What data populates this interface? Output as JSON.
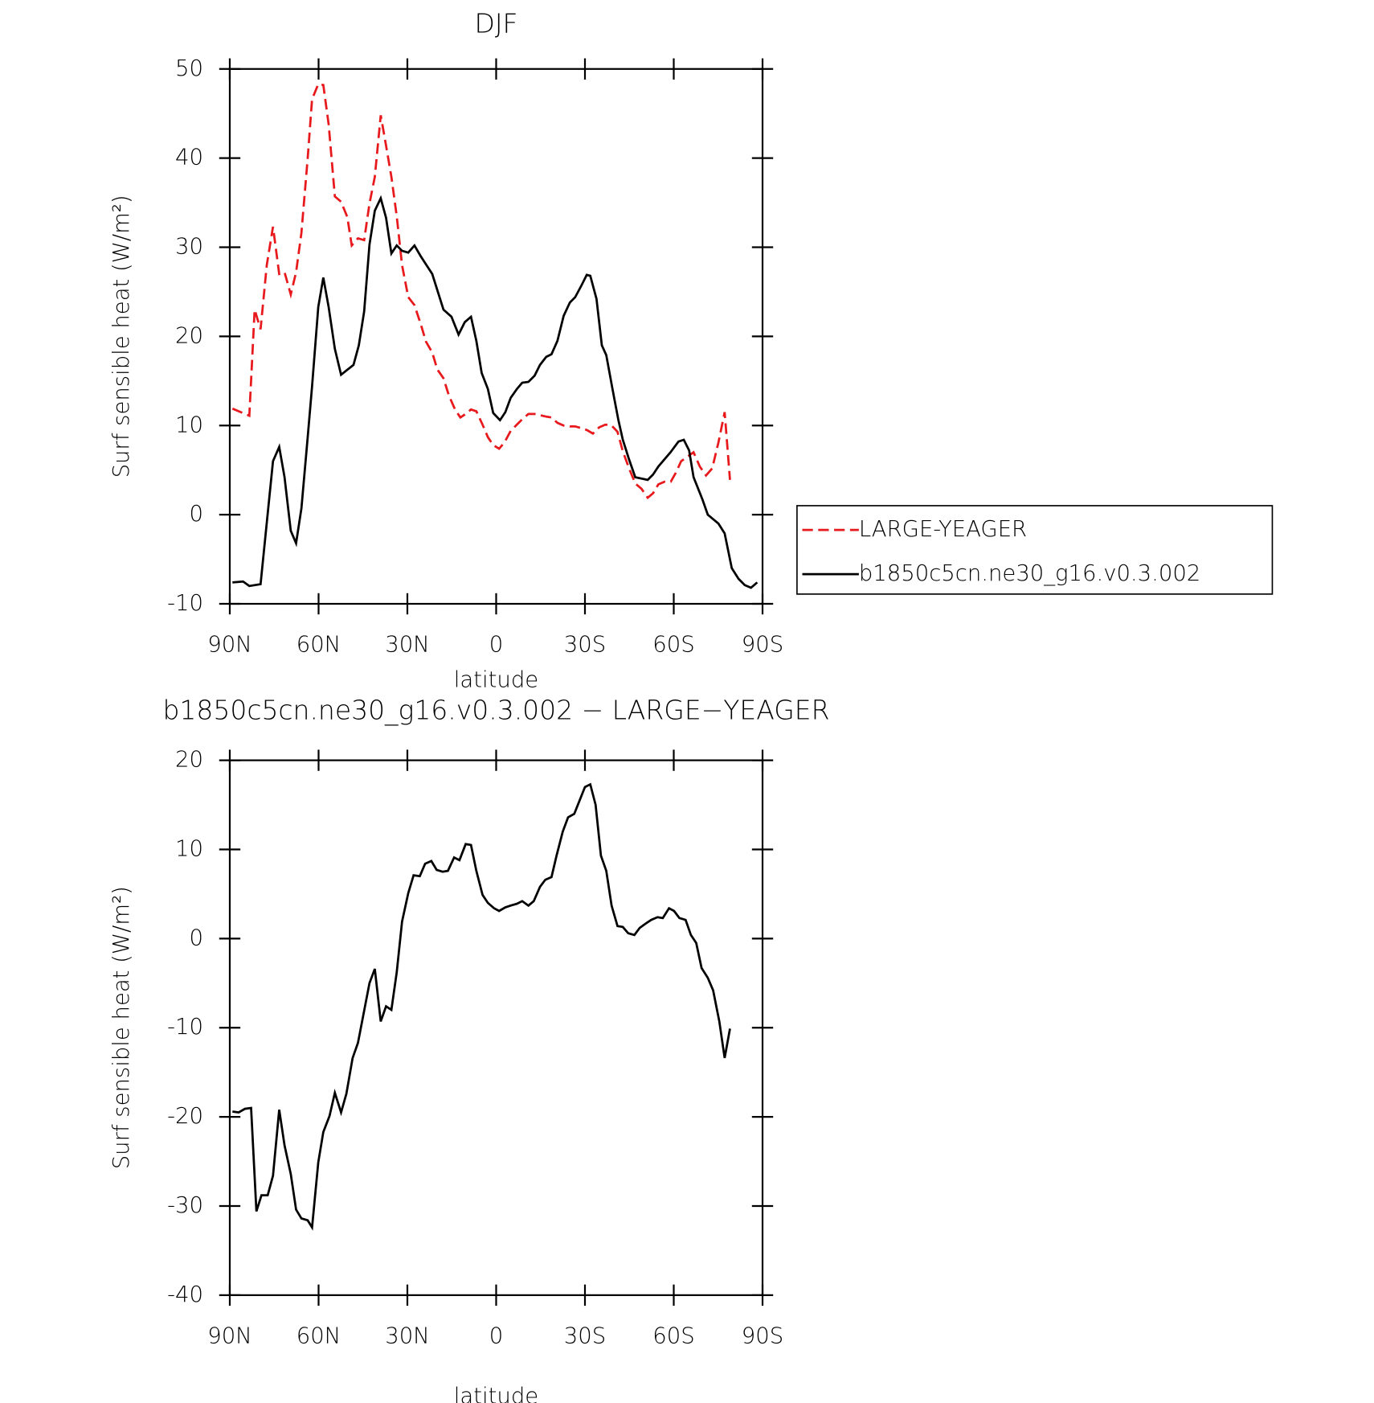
{
  "chart_data": [
    {
      "type": "line",
      "title": "DJF",
      "xlabel": "latitude",
      "ylabel": "Surf sensible heat (W/m²)",
      "xlim": [
        90,
        -90
      ],
      "xticks": [
        {
          "value": 90,
          "label": "90N"
        },
        {
          "value": 60,
          "label": "60N"
        },
        {
          "value": 30,
          "label": "30N"
        },
        0,
        {
          "value": -30,
          "label": "30S"
        },
        {
          "value": -60,
          "label": "60S"
        },
        {
          "value": -90,
          "label": "90S"
        }
      ],
      "ylim": [
        -10,
        50
      ],
      "yticks": [
        -10,
        0,
        10,
        20,
        30,
        40,
        50
      ],
      "legend": "outside-right",
      "series": [
        {
          "name": "LARGE-YEAGER",
          "color": "#e8191c",
          "dash": "dashed",
          "x": [
            89.1,
            87.0,
            83.4,
            81.6,
            79.6,
            77.5,
            75.4,
            73.3,
            71.5,
            69.4,
            67.6,
            65.8,
            63.7,
            62.2,
            60.1,
            58.4,
            56.6,
            54.5,
            52.4,
            50.3,
            48.8,
            46.7,
            44.6,
            42.8,
            41.0,
            39.0,
            37.2,
            35.4,
            33.6,
            31.8,
            29.7,
            27.6,
            25.5,
            23.7,
            21.6,
            19.9,
            17.8,
            16.0,
            13.9,
            12.1,
            10.3,
            8.5,
            6.7,
            4.6,
            2.8,
            1.0,
            -1.0,
            -2.8,
            -4.9,
            -7.0,
            -8.8,
            -10.9,
            -13.0,
            -16.9,
            -18.7,
            -20.7,
            -22.8,
            -24.9,
            -26.7,
            -28.8,
            -30.6,
            -32.7,
            -34.8,
            -36.9,
            -39.0,
            -41.0,
            -42.8,
            -44.9,
            -47.0,
            -49.1,
            -51.2,
            -53.0,
            -54.8,
            -56.9,
            -59.0,
            -60.7,
            -62.5,
            -64.6,
            -66.7,
            -68.8,
            -70.9,
            -73.0,
            -75.1,
            -77.2,
            -79.0
          ],
          "values": [
            11.9,
            11.6,
            11.1,
            23.0,
            20.8,
            28.0,
            32.3,
            27.0,
            27.2,
            24.7,
            27.2,
            31.6,
            39.9,
            46.6,
            48.3,
            48.2,
            43.8,
            35.7,
            35.1,
            33.4,
            30.2,
            31.0,
            30.8,
            34.9,
            37.9,
            44.8,
            41.4,
            37.9,
            33.5,
            28.0,
            24.4,
            23.5,
            21.4,
            19.4,
            18.2,
            16.3,
            15.3,
            13.4,
            11.8,
            10.9,
            11.3,
            11.8,
            11.6,
            10.1,
            8.7,
            7.8,
            7.4,
            8.1,
            9.4,
            10.1,
            10.7,
            11.3,
            11.3,
            11.0,
            10.9,
            10.3,
            10.0,
            9.9,
            9.9,
            9.7,
            9.5,
            9.1,
            9.8,
            10.1,
            10.0,
            9.3,
            7.1,
            5.2,
            3.5,
            2.9,
            1.9,
            2.4,
            3.4,
            3.7,
            3.7,
            4.7,
            6.0,
            6.5,
            7.0,
            5.4,
            4.4,
            5.2,
            8.1,
            11.5,
            3.9
          ]
        },
        {
          "name": "b1850c5cn.ne30_g16.v0.3.002",
          "color": "#000000",
          "dash": "solid",
          "x": [
            89.1,
            85.5,
            83.4,
            79.6,
            75.4,
            73.3,
            71.5,
            69.4,
            67.6,
            65.8,
            63.7,
            62.2,
            60.1,
            58.4,
            56.6,
            54.5,
            52.4,
            48.2,
            46.4,
            44.6,
            42.8,
            41.0,
            39.0,
            37.2,
            35.4,
            33.6,
            31.8,
            29.7,
            27.6,
            25.5,
            21.6,
            17.8,
            15.1,
            12.7,
            10.6,
            8.5,
            6.7,
            4.9,
            2.8,
            1.0,
            -1.3,
            -3.1,
            -4.9,
            -7.0,
            -8.8,
            -10.9,
            -13.0,
            -14.8,
            -16.9,
            -18.7,
            -20.7,
            -22.8,
            -24.9,
            -26.7,
            -28.8,
            -30.6,
            -31.8,
            -33.9,
            -35.7,
            -37.2,
            -39.3,
            -41.3,
            -42.8,
            -44.9,
            -47.0,
            -51.2,
            -53.0,
            -54.8,
            -58.9,
            -61.6,
            -63.4,
            -65.2,
            -66.7,
            -69.7,
            -71.5,
            -75.1,
            -77.2,
            -79.6,
            -81.9,
            -84.0,
            -86.1,
            -88.2
          ],
          "values": [
            -7.6,
            -7.5,
            -8.0,
            -7.8,
            6.0,
            7.6,
            4.2,
            -1.8,
            -3.2,
            0.7,
            8.6,
            14.4,
            23.3,
            26.6,
            23.3,
            18.6,
            15.7,
            16.8,
            19.0,
            22.8,
            30.3,
            34.1,
            35.5,
            33.3,
            29.3,
            30.2,
            29.6,
            29.4,
            30.2,
            29.0,
            27.0,
            23.0,
            22.2,
            20.2,
            21.6,
            22.2,
            19.5,
            15.9,
            14.1,
            11.4,
            10.6,
            11.5,
            13.1,
            14.1,
            14.8,
            14.9,
            15.6,
            16.8,
            17.7,
            18.0,
            19.5,
            22.3,
            23.8,
            24.4,
            25.7,
            26.9,
            26.8,
            24.2,
            19.0,
            17.9,
            14.1,
            10.6,
            8.4,
            6.2,
            4.2,
            3.9,
            4.5,
            5.4,
            7.0,
            8.2,
            8.4,
            7.2,
            4.2,
            1.7,
            0.0,
            -1.0,
            -2.1,
            -6.0,
            -7.2,
            -7.9,
            -8.2,
            -7.6
          ]
        }
      ]
    },
    {
      "type": "line",
      "title": "b1850c5cn.ne30_g16.v0.3.002 − LARGE−YEAGER",
      "xlabel": "latitude",
      "ylabel": "Surf sensible heat (W/m²)",
      "xlim": [
        90,
        -90
      ],
      "xticks": [
        {
          "value": 90,
          "label": "90N"
        },
        {
          "value": 60,
          "label": "60N"
        },
        {
          "value": 30,
          "label": "30N"
        },
        0,
        {
          "value": -30,
          "label": "30S"
        },
        {
          "value": -60,
          "label": "60S"
        },
        {
          "value": -90,
          "label": "90S"
        }
      ],
      "ylim": [
        -40,
        20
      ],
      "yticks": [
        -40,
        -30,
        -20,
        -10,
        0,
        10,
        20
      ],
      "series": [
        {
          "color": "#000000",
          "dash": "solid",
          "x": [
            89.1,
            87.0,
            84.9,
            82.8,
            81.0,
            79.3,
            77.2,
            75.4,
            73.3,
            71.5,
            69.4,
            67.6,
            65.8,
            63.7,
            62.2,
            60.1,
            58.4,
            56.3,
            54.5,
            52.4,
            50.6,
            48.5,
            46.7,
            44.6,
            42.8,
            41.0,
            39.0,
            37.2,
            35.4,
            33.6,
            31.8,
            29.7,
            27.9,
            25.8,
            24.0,
            21.9,
            20.1,
            18.1,
            16.3,
            14.2,
            12.4,
            10.3,
            8.5,
            6.7,
            4.6,
            2.8,
            0.7,
            -1.0,
            -3.1,
            -4.9,
            -7.0,
            -8.8,
            -10.9,
            -12.7,
            -14.8,
            -16.6,
            -18.7,
            -20.4,
            -22.5,
            -24.3,
            -26.4,
            -28.2,
            -30.0,
            -31.8,
            -33.6,
            -35.4,
            -37.2,
            -39.0,
            -41.0,
            -42.8,
            -44.6,
            -46.7,
            -48.5,
            -50.6,
            -52.4,
            -54.5,
            -56.3,
            -58.4,
            -60.1,
            -61.9,
            -64.0,
            -65.8,
            -67.6,
            -69.4,
            -71.5,
            -73.3,
            -75.4,
            -77.2,
            -79.0
          ],
          "values": [
            -19.4,
            -19.5,
            -19.1,
            -19.0,
            -30.6,
            -28.8,
            -28.8,
            -26.6,
            -19.2,
            -23.2,
            -26.4,
            -30.4,
            -31.4,
            -31.6,
            -32.4,
            -25.1,
            -21.7,
            -19.9,
            -17.3,
            -19.5,
            -17.4,
            -13.4,
            -11.7,
            -8.1,
            -5.0,
            -3.4,
            -9.3,
            -7.6,
            -8.0,
            -3.8,
            1.9,
            5.1,
            7.1,
            7.0,
            8.4,
            8.7,
            7.7,
            7.5,
            7.6,
            9.1,
            8.8,
            10.6,
            10.5,
            7.6,
            4.9,
            4.0,
            3.4,
            3.1,
            3.5,
            3.7,
            3.9,
            4.2,
            3.7,
            4.2,
            5.8,
            6.6,
            6.9,
            9.3,
            12.0,
            13.6,
            14.0,
            15.5,
            17.0,
            17.3,
            15.0,
            9.3,
            7.6,
            3.7,
            1.4,
            1.3,
            0.6,
            0.4,
            1.2,
            1.7,
            2.1,
            2.4,
            2.3,
            3.4,
            3.1,
            2.3,
            2.1,
            0.4,
            -0.5,
            -3.3,
            -4.4,
            -5.8,
            -9.3,
            -13.4,
            -10.1
          ]
        }
      ]
    }
  ]
}
